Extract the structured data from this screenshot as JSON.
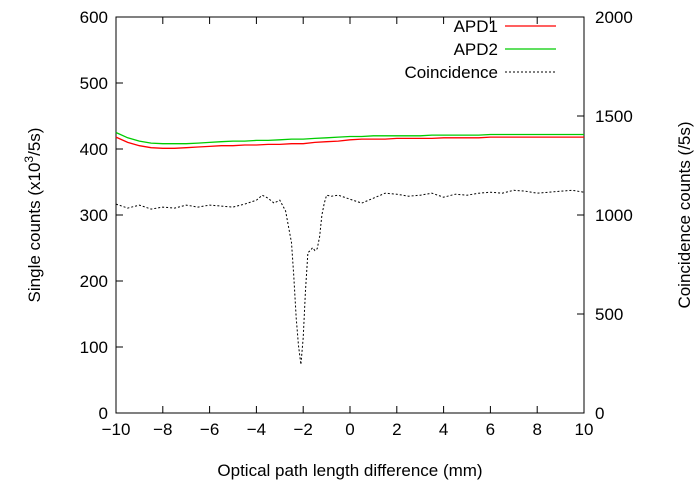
{
  "chart_data": {
    "type": "line",
    "xlabel": "Optical path length difference (mm)",
    "ylabel_left_prefix": "Single counts (x10",
    "ylabel_left_sup": "3",
    "ylabel_left_suffix": "/5s)",
    "ylabel_right": "Coincidence counts (/5s)",
    "xlim": [
      -10,
      10
    ],
    "ylim_left": [
      0,
      600
    ],
    "ylim_right": [
      0,
      2000
    ],
    "x_ticks": [
      -10,
      -8,
      -6,
      -4,
      -2,
      0,
      2,
      4,
      6,
      8,
      10
    ],
    "x_tick_labels": [
      "−10",
      "−8",
      "−6",
      "−4",
      "−2",
      "0",
      "2",
      "4",
      "6",
      "8",
      "10"
    ],
    "y_left_ticks": [
      0,
      100,
      200,
      300,
      400,
      500,
      600
    ],
    "y_left_tick_labels": [
      "0",
      "100",
      "200",
      "300",
      "400",
      "500",
      "600"
    ],
    "y_right_ticks": [
      0,
      500,
      1000,
      1500,
      2000
    ],
    "y_right_tick_labels": [
      "0",
      "500",
      "1000",
      "1500",
      "2000"
    ],
    "legend_position": "top-right",
    "series": [
      {
        "name": "APD1",
        "axis": "left",
        "color": "#ff0000",
        "dash": "solid",
        "x": [
          -10,
          -9.5,
          -9,
          -8.5,
          -8,
          -7.5,
          -7,
          -6.5,
          -6,
          -5.5,
          -5,
          -4.5,
          -4,
          -3.5,
          -3,
          -2.5,
          -2,
          -1.5,
          -1,
          -0.5,
          0,
          0.5,
          1,
          1.5,
          2,
          2.5,
          3,
          3.5,
          4,
          4.5,
          5,
          5.5,
          6,
          6.5,
          7,
          7.5,
          8,
          8.5,
          9,
          9.5,
          10
        ],
        "y": [
          418,
          410,
          405,
          402,
          401,
          401,
          402,
          403,
          404,
          405,
          405,
          406,
          406,
          407,
          407,
          408,
          408,
          410,
          411,
          412,
          414,
          415,
          415,
          415,
          416,
          416,
          416,
          416,
          417,
          417,
          417,
          417,
          418,
          418,
          418,
          418,
          418,
          418,
          418,
          418,
          418
        ]
      },
      {
        "name": "APD2",
        "axis": "left",
        "color": "#00cc00",
        "dash": "solid",
        "x": [
          -10,
          -9.5,
          -9,
          -8.5,
          -8,
          -7.5,
          -7,
          -6.5,
          -6,
          -5.5,
          -5,
          -4.5,
          -4,
          -3.5,
          -3,
          -2.5,
          -2,
          -1.5,
          -1,
          -0.5,
          0,
          0.5,
          1,
          1.5,
          2,
          2.5,
          3,
          3.5,
          4,
          4.5,
          5,
          5.5,
          6,
          6.5,
          7,
          7.5,
          8,
          8.5,
          9,
          9.5,
          10
        ],
        "y": [
          425,
          417,
          412,
          409,
          408,
          408,
          408,
          409,
          410,
          411,
          412,
          412,
          413,
          413,
          414,
          415,
          415,
          416,
          417,
          418,
          419,
          419,
          420,
          420,
          420,
          420,
          420,
          421,
          421,
          421,
          421,
          421,
          422,
          422,
          422,
          422,
          422,
          422,
          422,
          422,
          422
        ]
      },
      {
        "name": "Coincidence",
        "axis": "right",
        "color": "#000000",
        "dash": "dotted",
        "x": [
          -10,
          -9.5,
          -9,
          -8.5,
          -8,
          -7.5,
          -7,
          -6.5,
          -6,
          -5.5,
          -5,
          -4.5,
          -4,
          -3.75,
          -3.5,
          -3.25,
          -3,
          -2.75,
          -2.5,
          -2.4,
          -2.3,
          -2.2,
          -2.1,
          -2.0,
          -1.9,
          -1.8,
          -1.7,
          -1.6,
          -1.5,
          -1.4,
          -1.3,
          -1.2,
          -1.1,
          -1.0,
          -0.8,
          -0.5,
          0,
          0.5,
          1,
          1.5,
          2,
          2.5,
          3,
          3.5,
          4,
          4.5,
          5,
          5.5,
          6,
          6.5,
          7,
          7.5,
          8,
          8.5,
          9,
          9.5,
          10
        ],
        "y": [
          1055,
          1035,
          1050,
          1030,
          1040,
          1035,
          1050,
          1040,
          1050,
          1045,
          1040,
          1055,
          1075,
          1100,
          1085,
          1060,
          1075,
          1020,
          860,
          690,
          480,
          340,
          245,
          380,
          620,
          810,
          820,
          835,
          820,
          830,
          890,
          1000,
          1060,
          1100,
          1095,
          1100,
          1080,
          1060,
          1085,
          1110,
          1105,
          1095,
          1100,
          1110,
          1090,
          1105,
          1100,
          1110,
          1115,
          1110,
          1125,
          1120,
          1110,
          1115,
          1120,
          1125,
          1115
        ]
      }
    ]
  }
}
